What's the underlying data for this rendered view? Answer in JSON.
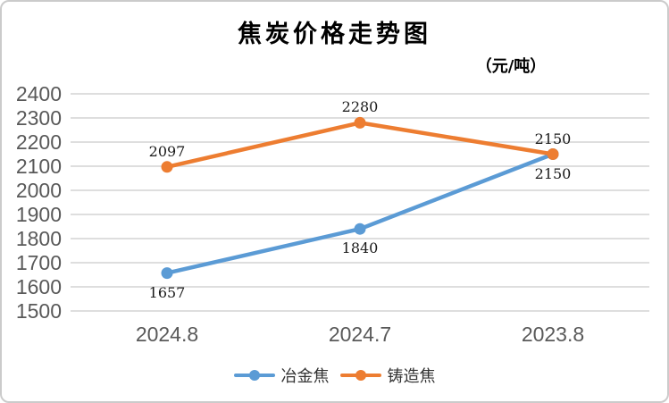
{
  "chart_data": {
    "type": "line",
    "title": "焦炭价格走势图",
    "unit_label": "（元/吨）",
    "xlabel": "",
    "ylabel": "",
    "categories": [
      "2024.8",
      "2024.7",
      "2023.8"
    ],
    "series": [
      {
        "name": "冶金焦",
        "values": [
          1657,
          1840,
          2150
        ],
        "color": "#5B9BD5",
        "data_label_position": "below"
      },
      {
        "name": "铸造焦",
        "values": [
          2097,
          2280,
          2150
        ],
        "color": "#ED7D31",
        "data_label_position": "above"
      }
    ],
    "ylim": [
      1500,
      2400
    ],
    "ytick_step": 100,
    "yticks": [
      2400,
      2300,
      2200,
      2100,
      2000,
      1900,
      1800,
      1700,
      1600,
      1500
    ],
    "grid": true,
    "legend_position": "bottom",
    "colors": {
      "grid": "#D9D9D9",
      "axis_text": "#595959",
      "data_label": "#1a1a1a",
      "legend_text": "#333333",
      "border": "#CBCBCB",
      "background": "#FFFFFF"
    }
  }
}
